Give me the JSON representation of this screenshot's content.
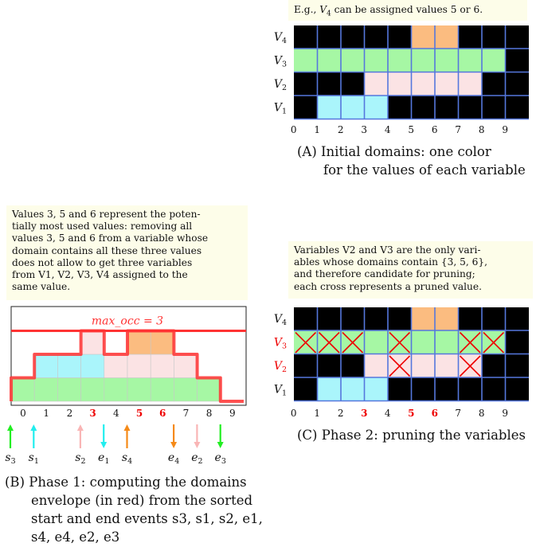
{
  "colors": {
    "V1": "#aaf5fb",
    "V2": "#fbe3e4",
    "V3": "#a6f7a4",
    "V4": "#fbbc80",
    "grid_bg": "#000000",
    "grid_line": "#5577dd",
    "envelope": "#ff3333",
    "note_bg": "#fdfde9",
    "arrow_green": "#22ee22",
    "arrow_cyan": "#22eeee",
    "arrow_pink": "#f9b5b5",
    "arrow_orange": "#f58a18",
    "pruned_label": "#ee0000",
    "pruned_cross": "#ee0000"
  },
  "panelA": {
    "note": {
      "prefix": "E.g., ",
      "var": "V",
      "sub": "4",
      "suffix": " can be assigned values 5 or 6."
    },
    "rows": [
      {
        "label": "V",
        "sub": "4",
        "cells": [
          5,
          6
        ],
        "color_key": "V4"
      },
      {
        "label": "V",
        "sub": "3",
        "cells": [
          0,
          1,
          2,
          3,
          4,
          5,
          6,
          7,
          8
        ],
        "color_key": "V3"
      },
      {
        "label": "V",
        "sub": "2",
        "cells": [
          3,
          4,
          5,
          6,
          7
        ],
        "color_key": "V2"
      },
      {
        "label": "V",
        "sub": "1",
        "cells": [
          1,
          2,
          3
        ],
        "color_key": "V1"
      }
    ],
    "values": [
      "0",
      "1",
      "2",
      "3",
      "4",
      "5",
      "6",
      "7",
      "8",
      "9"
    ],
    "caption_line1": "(A) Initial domains: one color",
    "caption_line2": "for the values of each variable"
  },
  "panelB": {
    "note": [
      "Values 3, 5 and 6 represent the poten-",
      "tially most used values: removing all",
      "values 3, 5 and 6 from a variable whose",
      "domain contains all these three values",
      "does not allow to get three variables",
      "from V1, V2, V3, V4 assigned to the",
      "same value."
    ],
    "max_occ_label": "max_occ = 3",
    "stack": [
      {
        "row": 0,
        "cells": [
          0,
          1,
          2,
          3,
          4,
          5,
          6,
          7,
          8
        ],
        "color_key": "V3"
      },
      {
        "row": 1,
        "cells": [
          1,
          2,
          3
        ],
        "color_key": "V1"
      },
      {
        "row": 1,
        "cells": [
          4,
          5,
          6,
          7
        ],
        "color_key": "V2"
      },
      {
        "row": 2,
        "cells": [
          3
        ],
        "color_key": "V2"
      },
      {
        "row": 2,
        "cells": [
          5,
          6
        ],
        "color_key": "V4"
      }
    ],
    "envelope_heights": [
      1,
      2,
      2,
      3,
      2,
      3,
      3,
      2,
      1,
      0
    ],
    "values": [
      "0",
      "1",
      "2",
      "3",
      "4",
      "5",
      "6",
      "7",
      "8",
      "9"
    ],
    "highlight_values": [
      "3",
      "5",
      "6"
    ],
    "events": [
      {
        "name": "s",
        "sub": "3",
        "pos": 0.0,
        "dir": "up",
        "color_key": "arrow_green"
      },
      {
        "name": "s",
        "sub": "1",
        "pos": 1.0,
        "dir": "up",
        "color_key": "arrow_cyan"
      },
      {
        "name": "s",
        "sub": "2",
        "pos": 3.0,
        "dir": "up",
        "color_key": "arrow_pink"
      },
      {
        "name": "e",
        "sub": "1",
        "pos": 4.0,
        "dir": "down",
        "color_key": "arrow_cyan"
      },
      {
        "name": "s",
        "sub": "4",
        "pos": 5.0,
        "dir": "up",
        "color_key": "arrow_orange"
      },
      {
        "name": "e",
        "sub": "4",
        "pos": 7.0,
        "dir": "down",
        "color_key": "arrow_orange"
      },
      {
        "name": "e",
        "sub": "2",
        "pos": 8.0,
        "dir": "down",
        "color_key": "arrow_pink"
      },
      {
        "name": "e",
        "sub": "3",
        "pos": 9.0,
        "dir": "down",
        "color_key": "arrow_green"
      }
    ],
    "caption_line1": "(B) Phase 1: computing the domains",
    "caption_line2": "envelope (in red) from the sorted",
    "caption_line3": "start and end events s3, s1, s2, e1,",
    "caption_line4": "s4, e4, e2, e3"
  },
  "panelC": {
    "note": [
      "Variables V2 and V3 are the only vari-",
      "ables whose domains contain {3, 5, 6},",
      "and therefore candidate for pruning;",
      "each cross represents a pruned value."
    ],
    "rows": [
      {
        "label": "V",
        "sub": "4",
        "cells": [
          5,
          6
        ],
        "color_key": "V4",
        "pruned": [],
        "red_label": false
      },
      {
        "label": "V",
        "sub": "3",
        "cells": [
          0,
          1,
          2,
          3,
          4,
          5,
          6,
          7,
          8
        ],
        "color_key": "V3",
        "pruned": [
          0,
          1,
          2,
          4,
          7,
          8
        ],
        "red_label": true
      },
      {
        "label": "V",
        "sub": "2",
        "cells": [
          3,
          4,
          5,
          6,
          7
        ],
        "color_key": "V2",
        "pruned": [
          4,
          7
        ],
        "red_label": true
      },
      {
        "label": "V",
        "sub": "1",
        "cells": [
          1,
          2,
          3
        ],
        "color_key": "V1",
        "pruned": [],
        "red_label": false
      }
    ],
    "values": [
      "0",
      "1",
      "2",
      "3",
      "4",
      "5",
      "6",
      "7",
      "8",
      "9"
    ],
    "highlight_values": [
      "3",
      "5",
      "6"
    ],
    "caption_line1": "(C) Phase 2: pruning the variables"
  }
}
